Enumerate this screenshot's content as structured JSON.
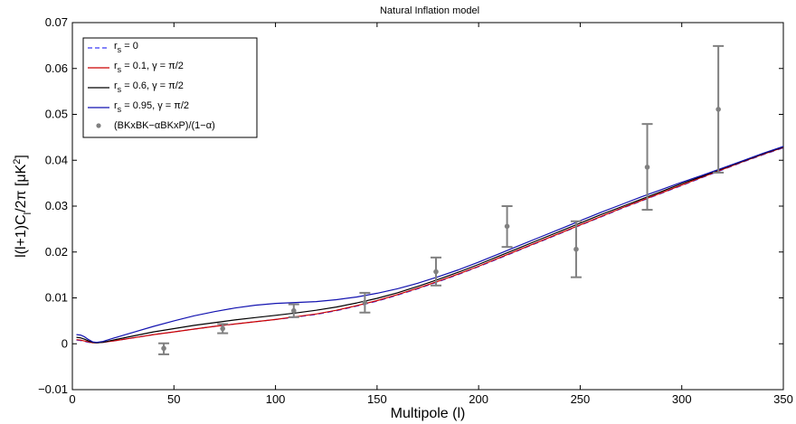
{
  "chart_data": {
    "type": "line",
    "title": "Natural Inflation model",
    "xlabel": "Multipole (l)",
    "ylabel": "l(l+1)C_l/2π [μK²]",
    "xlim": [
      0,
      350
    ],
    "ylim": [
      -0.01,
      0.07
    ],
    "xticks": [
      0,
      50,
      100,
      150,
      200,
      250,
      300,
      350
    ],
    "xtick_labels": [
      "0",
      "50",
      "100",
      "150",
      "200",
      "250",
      "300",
      "350"
    ],
    "yticks": [
      -0.01,
      0,
      0.01,
      0.02,
      0.03,
      0.04,
      0.05,
      0.06,
      0.07
    ],
    "ytick_labels": [
      "−0.01",
      "0",
      "0.01",
      "0.02",
      "0.03",
      "0.04",
      "0.05",
      "0.06",
      "0.07"
    ],
    "grid": false,
    "legend_position": "top-left",
    "series": [
      {
        "name": "r_s = 0",
        "label_main": "r",
        "label_sub": "s",
        "label_rest": " = 0",
        "color": "#3a3af5",
        "style": "dashed",
        "points": [
          [
            2,
            0.0008
          ],
          [
            4,
            0.0007
          ],
          [
            6,
            0.0005
          ],
          [
            8,
            0.0003
          ],
          [
            10,
            0.0002
          ],
          [
            12,
            0.0002
          ],
          [
            15,
            0.0003
          ],
          [
            20,
            0.0006
          ],
          [
            30,
            0.0013
          ],
          [
            40,
            0.002
          ],
          [
            50,
            0.0026
          ],
          [
            60,
            0.0032
          ],
          [
            70,
            0.0038
          ],
          [
            80,
            0.0043
          ],
          [
            90,
            0.0048
          ],
          [
            100,
            0.0053
          ],
          [
            110,
            0.0058
          ],
          [
            120,
            0.0064
          ],
          [
            130,
            0.0072
          ],
          [
            140,
            0.0082
          ],
          [
            150,
            0.0093
          ],
          [
            160,
            0.0106
          ],
          [
            170,
            0.012
          ],
          [
            180,
            0.0135
          ],
          [
            190,
            0.0151
          ],
          [
            200,
            0.0168
          ],
          [
            210,
            0.0186
          ],
          [
            220,
            0.0204
          ],
          [
            230,
            0.0222
          ],
          [
            240,
            0.024
          ],
          [
            250,
            0.0258
          ],
          [
            260,
            0.0276
          ],
          [
            270,
            0.0294
          ],
          [
            280,
            0.0311
          ],
          [
            290,
            0.0328
          ],
          [
            300,
            0.0345
          ],
          [
            310,
            0.0362
          ],
          [
            320,
            0.0379
          ],
          [
            330,
            0.0396
          ],
          [
            340,
            0.0412
          ],
          [
            350,
            0.0427
          ]
        ]
      },
      {
        "name": "r_s = 0.1, γ = π/2",
        "label_main": "r",
        "label_sub": "s",
        "label_rest": " = 0.1, γ = π/2",
        "color": "#cc0000",
        "style": "solid",
        "points": [
          [
            2,
            0.0009
          ],
          [
            4,
            0.0008
          ],
          [
            6,
            0.0006
          ],
          [
            8,
            0.0004
          ],
          [
            10,
            0.0002
          ],
          [
            12,
            0.0002
          ],
          [
            15,
            0.0003
          ],
          [
            20,
            0.0006
          ],
          [
            30,
            0.0013
          ],
          [
            40,
            0.002
          ],
          [
            50,
            0.0026
          ],
          [
            60,
            0.0032
          ],
          [
            70,
            0.0038
          ],
          [
            80,
            0.0043
          ],
          [
            90,
            0.0048
          ],
          [
            100,
            0.0053
          ],
          [
            110,
            0.0059
          ],
          [
            120,
            0.0065
          ],
          [
            130,
            0.0073
          ],
          [
            140,
            0.0083
          ],
          [
            150,
            0.0094
          ],
          [
            160,
            0.0107
          ],
          [
            170,
            0.0121
          ],
          [
            180,
            0.0136
          ],
          [
            190,
            0.0152
          ],
          [
            200,
            0.0169
          ],
          [
            210,
            0.0187
          ],
          [
            220,
            0.0205
          ],
          [
            230,
            0.0223
          ],
          [
            240,
            0.0241
          ],
          [
            250,
            0.0259
          ],
          [
            260,
            0.0277
          ],
          [
            270,
            0.0295
          ],
          [
            280,
            0.0312
          ],
          [
            290,
            0.0329
          ],
          [
            300,
            0.0346
          ],
          [
            310,
            0.0363
          ],
          [
            320,
            0.038
          ],
          [
            330,
            0.0397
          ],
          [
            340,
            0.0413
          ],
          [
            350,
            0.0428
          ]
        ]
      },
      {
        "name": "r_s = 0.6, γ = π/2",
        "label_main": "r",
        "label_sub": "s",
        "label_rest": " = 0.6, γ = π/2",
        "color": "#000000",
        "style": "solid",
        "points": [
          [
            2,
            0.0014
          ],
          [
            4,
            0.0013
          ],
          [
            6,
            0.001
          ],
          [
            8,
            0.0006
          ],
          [
            10,
            0.0003
          ],
          [
            12,
            0.0002
          ],
          [
            15,
            0.0003
          ],
          [
            20,
            0.0008
          ],
          [
            30,
            0.0017
          ],
          [
            40,
            0.0026
          ],
          [
            50,
            0.0033
          ],
          [
            60,
            0.004
          ],
          [
            70,
            0.0046
          ],
          [
            80,
            0.0052
          ],
          [
            90,
            0.0057
          ],
          [
            100,
            0.0062
          ],
          [
            110,
            0.0067
          ],
          [
            120,
            0.0073
          ],
          [
            130,
            0.008
          ],
          [
            140,
            0.0089
          ],
          [
            150,
            0.0099
          ],
          [
            160,
            0.0111
          ],
          [
            170,
            0.0125
          ],
          [
            180,
            0.014
          ],
          [
            190,
            0.0156
          ],
          [
            200,
            0.0173
          ],
          [
            210,
            0.0191
          ],
          [
            220,
            0.0209
          ],
          [
            230,
            0.0227
          ],
          [
            240,
            0.0245
          ],
          [
            250,
            0.0263
          ],
          [
            260,
            0.0281
          ],
          [
            270,
            0.0298
          ],
          [
            280,
            0.0315
          ],
          [
            290,
            0.0332
          ],
          [
            300,
            0.0349
          ],
          [
            310,
            0.0365
          ],
          [
            320,
            0.0382
          ],
          [
            330,
            0.0398
          ],
          [
            340,
            0.0414
          ],
          [
            350,
            0.0429
          ]
        ]
      },
      {
        "name": "r_s = 0.95, γ = π/2",
        "label_main": "r",
        "label_sub": "s",
        "label_rest": " = 0.95, γ = π/2",
        "color": "#1212b0",
        "style": "solid",
        "points": [
          [
            2,
            0.002
          ],
          [
            4,
            0.0019
          ],
          [
            6,
            0.0015
          ],
          [
            8,
            0.0009
          ],
          [
            10,
            0.0004
          ],
          [
            12,
            0.0003
          ],
          [
            15,
            0.0005
          ],
          [
            20,
            0.0012
          ],
          [
            30,
            0.0025
          ],
          [
            40,
            0.0038
          ],
          [
            50,
            0.005
          ],
          [
            60,
            0.0061
          ],
          [
            70,
            0.007
          ],
          [
            80,
            0.0078
          ],
          [
            90,
            0.0084
          ],
          [
            100,
            0.0088
          ],
          [
            110,
            0.009
          ],
          [
            120,
            0.0092
          ],
          [
            130,
            0.0096
          ],
          [
            140,
            0.0102
          ],
          [
            150,
            0.011
          ],
          [
            160,
            0.012
          ],
          [
            170,
            0.0132
          ],
          [
            180,
            0.0146
          ],
          [
            190,
            0.0161
          ],
          [
            200,
            0.0178
          ],
          [
            210,
            0.0196
          ],
          [
            220,
            0.0214
          ],
          [
            230,
            0.0232
          ],
          [
            240,
            0.025
          ],
          [
            250,
            0.0268
          ],
          [
            260,
            0.0286
          ],
          [
            270,
            0.0303
          ],
          [
            280,
            0.032
          ],
          [
            290,
            0.0336
          ],
          [
            300,
            0.0352
          ],
          [
            310,
            0.0367
          ],
          [
            320,
            0.0383
          ],
          [
            330,
            0.0399
          ],
          [
            340,
            0.0415
          ],
          [
            350,
            0.043
          ]
        ]
      }
    ],
    "points_series": {
      "name": "(BKxBK−αBKxP)/(1−α)",
      "color": "#808080",
      "points": [
        {
          "x": 45,
          "y": -0.001,
          "low": -0.0023,
          "high": 0.0001
        },
        {
          "x": 74,
          "y": 0.0033,
          "low": 0.0023,
          "high": 0.0043
        },
        {
          "x": 109,
          "y": 0.0072,
          "low": 0.0058,
          "high": 0.0086
        },
        {
          "x": 144,
          "y": 0.009,
          "low": 0.0068,
          "high": 0.0111
        },
        {
          "x": 179,
          "y": 0.0157,
          "low": 0.0127,
          "high": 0.0188
        },
        {
          "x": 214,
          "y": 0.0256,
          "low": 0.0211,
          "high": 0.03
        },
        {
          "x": 248,
          "y": 0.0206,
          "low": 0.0145,
          "high": 0.0267
        },
        {
          "x": 283,
          "y": 0.0385,
          "low": 0.0292,
          "high": 0.0479
        },
        {
          "x": 318,
          "y": 0.0511,
          "low": 0.0373,
          "high": 0.0649
        }
      ]
    }
  }
}
